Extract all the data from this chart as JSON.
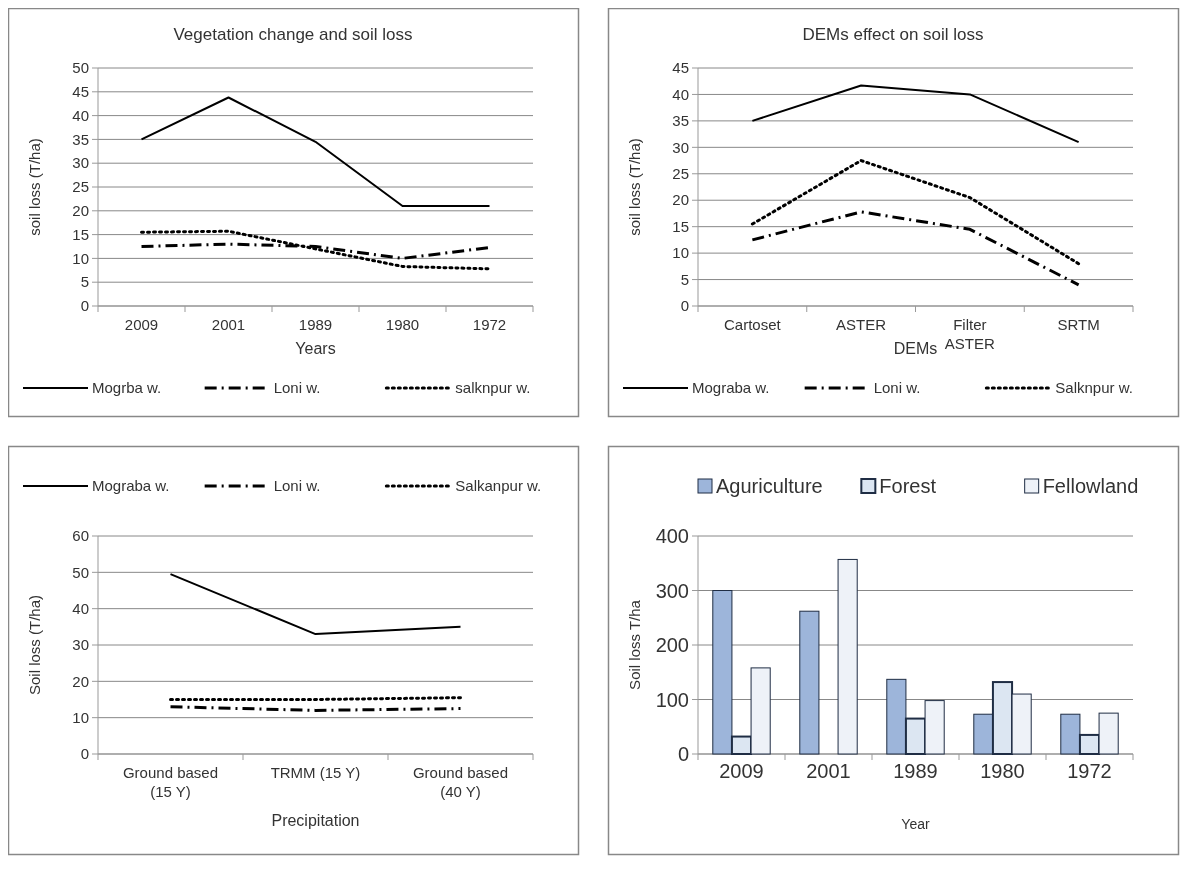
{
  "chart_data": [
    {
      "type": "line",
      "title": "Vegetation change and soil loss",
      "xlabel": "Years",
      "ylabel": "soil  loss  (T/ha)",
      "categories": [
        "2009",
        "2001",
        "1989",
        "1980",
        "1972"
      ],
      "ylim": [
        0,
        50
      ],
      "yticks": [
        0,
        5,
        10,
        15,
        20,
        25,
        30,
        35,
        40,
        45,
        50
      ],
      "grid": "y",
      "legend": "bottom",
      "series": [
        {
          "name": "Mogrba w.",
          "color": "#000000",
          "line_style": "solid",
          "values": [
            35,
            43.8,
            34.5,
            21,
            21
          ]
        },
        {
          "name": "Loni w.",
          "color": "#000000",
          "line_style": "dashed",
          "values": [
            12.5,
            13,
            12.5,
            10,
            12.3
          ]
        },
        {
          "name": "salknpur w.",
          "color": "#000000",
          "line_style": "dotted",
          "values": [
            15.5,
            15.7,
            12,
            8.3,
            7.8
          ]
        }
      ]
    },
    {
      "type": "line",
      "title": "DEMs effect on soil  loss",
      "xlabel": "DEMs",
      "ylabel": "soil  loss  (T/ha)",
      "categories": [
        "Cartoset",
        "ASTER",
        "Filter ASTER",
        "SRTM"
      ],
      "ylim": [
        0,
        45
      ],
      "yticks": [
        0,
        5,
        10,
        15,
        20,
        25,
        30,
        35,
        40,
        45
      ],
      "grid": "y",
      "legend": "bottom",
      "series": [
        {
          "name": "Mograba w.",
          "color": "#000000",
          "line_style": "solid",
          "values": [
            35,
            41.7,
            40,
            31
          ]
        },
        {
          "name": "Loni w.",
          "color": "#000000",
          "line_style": "dashed",
          "values": [
            12.5,
            17.8,
            14.5,
            4
          ]
        },
        {
          "name": "Salknpur w.",
          "color": "#000000",
          "line_style": "dotted",
          "values": [
            15.5,
            27.5,
            20.5,
            8
          ]
        }
      ]
    },
    {
      "type": "line",
      "xlabel": "Precipitation",
      "ylabel": "Soil loss   (T/ha)",
      "categories": [
        "Ground based (15 Y)",
        "TRMM (15 Y)",
        "Ground based (40 Y)"
      ],
      "ylim": [
        0,
        60
      ],
      "yticks": [
        0,
        10,
        20,
        30,
        40,
        50,
        60
      ],
      "grid": "y",
      "legend": "top",
      "series": [
        {
          "name": "Mograba w.",
          "color": "#000000",
          "line_style": "solid",
          "values": [
            49.5,
            33,
            35
          ]
        },
        {
          "name": "Loni w.",
          "color": "#000000",
          "line_style": "dashed",
          "values": [
            13,
            12,
            12.5
          ]
        },
        {
          "name": "Salkanpur w.",
          "color": "#000000",
          "line_style": "dotted",
          "values": [
            15,
            15,
            15.5
          ]
        }
      ]
    },
    {
      "type": "bar",
      "xlabel": "Year",
      "ylabel": "Soil loss T/ha",
      "categories": [
        "2009",
        "2001",
        "1989",
        "1980",
        "1972"
      ],
      "ylim": [
        0,
        400
      ],
      "yticks": [
        0,
        100,
        200,
        300,
        400
      ],
      "grid": "y",
      "legend": "top",
      "series": [
        {
          "name": "Aguriculture",
          "color": "#9db5da",
          "values": [
            300,
            262,
            137,
            73,
            73
          ]
        },
        {
          "name": "Forest",
          "color": "#dce6f2",
          "values": [
            32,
            0,
            65,
            132,
            35
          ]
        },
        {
          "name": "Fellowland",
          "color": "#eef2f8",
          "values": [
            158,
            357,
            98,
            110,
            75
          ]
        }
      ]
    }
  ]
}
